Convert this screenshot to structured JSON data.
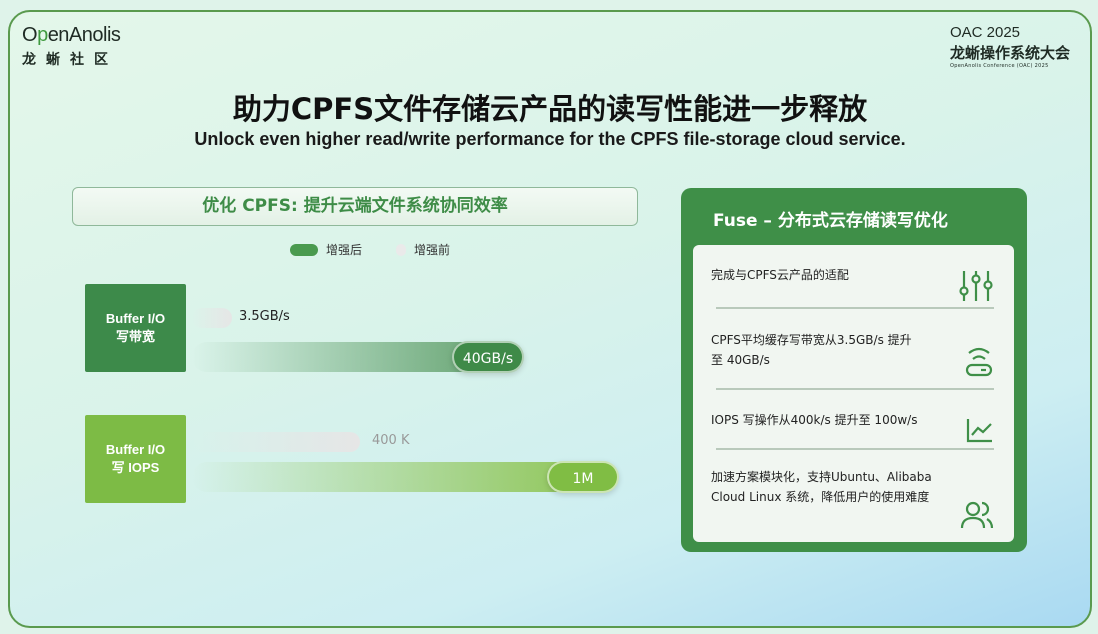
{
  "logo": {
    "brand_pre": "O",
    "brand_p": "p",
    "brand_post": "enAnolis",
    "cn": "龙蜥社区"
  },
  "event": {
    "year": "OAC 2025",
    "name": "龙蜥操作系统大会",
    "sub": "OpenAnolis Conference (OAC) 2025"
  },
  "title": "助力CPFS文件存储云产品的读写性能进一步释放",
  "subtitle": "Unlock even higher read/write performance for the CPFS file-storage cloud service.",
  "left": {
    "header": "优化 CPFS: 提升云端文件系统协同效率",
    "legend": [
      {
        "label": "增强后",
        "color": "#4a9a4f"
      },
      {
        "label": "增强前",
        "color": "#e6e6e6"
      }
    ],
    "rows": [
      {
        "label_line1": "Buffer I/O",
        "label_line2": "写带宽",
        "before": "3.5GB/s",
        "after": "40GB/s",
        "color": "#3d8a4a"
      },
      {
        "label_line1": "Buffer I/O",
        "label_line2": "写 IOPS",
        "before": "400 K",
        "after": "1M",
        "color": "#7dbb45"
      }
    ]
  },
  "right": {
    "title": "Fuse – 分布式云存储读写优化",
    "items": [
      {
        "text": "完成与CPFS云产品的适配",
        "icon": "sliders-icon"
      },
      {
        "text": "CPFS平均缓存写带宽从3.5GB/s 提升至 40GB/s",
        "icon": "router-icon"
      },
      {
        "text": "IOPS 写操作从400k/s 提升至 100w/s",
        "icon": "line-chart-icon"
      },
      {
        "text": "加速方案模块化，支持Ubuntu、Alibaba Cloud Linux 系统，降低用户的使用难度",
        "icon": "users-icon"
      }
    ]
  }
}
